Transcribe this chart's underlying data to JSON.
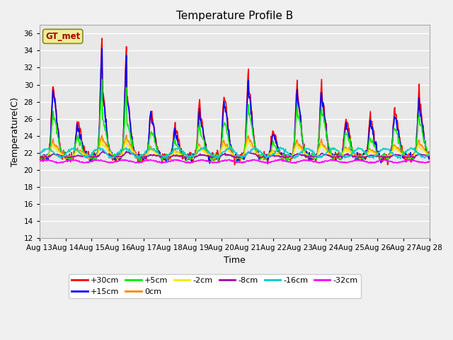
{
  "title": "Temperature Profile B",
  "xlabel": "Time",
  "ylabel": "Temperature(C)",
  "ylim": [
    12,
    37
  ],
  "yticks": [
    12,
    14,
    16,
    18,
    20,
    22,
    24,
    26,
    28,
    30,
    32,
    34,
    36
  ],
  "background_color": "#e8e8e8",
  "grid_color": "#ffffff",
  "fig_bg": "#f0f0f0",
  "series": {
    "+30cm": {
      "color": "#ff0000",
      "lw": 1.2
    },
    "+15cm": {
      "color": "#0000ff",
      "lw": 1.2
    },
    "+5cm": {
      "color": "#00ee00",
      "lw": 1.2
    },
    "0cm": {
      "color": "#ff8800",
      "lw": 1.2
    },
    "-2cm": {
      "color": "#eeee00",
      "lw": 1.2
    },
    "-8cm": {
      "color": "#aa00aa",
      "lw": 1.2
    },
    "-16cm": {
      "color": "#00cccc",
      "lw": 1.2
    },
    "-32cm": {
      "color": "#ff00ff",
      "lw": 1.2
    }
  },
  "gt_met_box_color": "#eeee99",
  "gt_met_text_color": "#aa0000",
  "gt_met_edge_color": "#888822",
  "legend_ncol_row1": 6,
  "base_temp": 21.5
}
